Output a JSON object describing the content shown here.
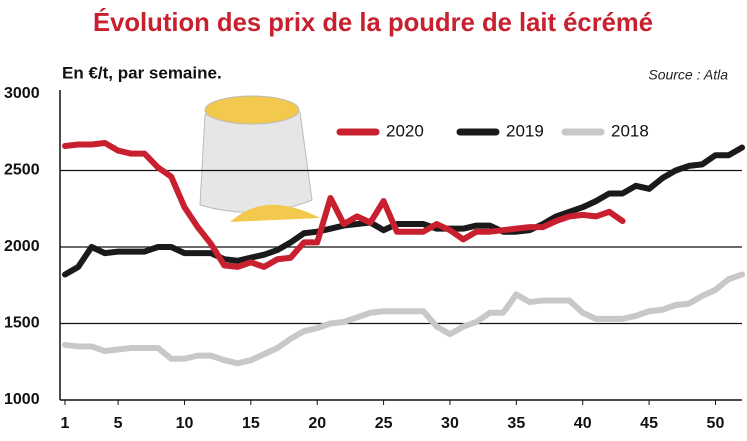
{
  "chart_data": {
    "type": "line",
    "title": "Évolution des prix de la poudre de lait écrémé",
    "subtitle": "En €/t, par semaine.",
    "source": "Source : Atla",
    "x": [
      1,
      2,
      3,
      4,
      5,
      6,
      7,
      8,
      9,
      10,
      11,
      12,
      13,
      14,
      15,
      16,
      17,
      18,
      19,
      20,
      21,
      22,
      23,
      24,
      25,
      26,
      27,
      28,
      29,
      30,
      31,
      32,
      33,
      34,
      35,
      36,
      37,
      38,
      39,
      40,
      41,
      42,
      43,
      44,
      45,
      46,
      47,
      48,
      49,
      50,
      51,
      52
    ],
    "xlim": [
      1,
      52
    ],
    "xticks": [
      1,
      5,
      10,
      15,
      20,
      25,
      30,
      35,
      40,
      45,
      50
    ],
    "ylim": [
      1000,
      3000
    ],
    "yticks": [
      1000,
      1500,
      2000,
      2500,
      3000
    ],
    "grid": true,
    "series": [
      {
        "name": "2020",
        "color": "#c8202f",
        "values": [
          2660,
          2670,
          2670,
          2680,
          2630,
          2610,
          2610,
          2520,
          2460,
          2260,
          2130,
          2020,
          1880,
          1870,
          1900,
          1870,
          1920,
          1930,
          2030,
          2030,
          2320,
          2150,
          2200,
          2160,
          2300,
          2100,
          2100,
          2100,
          2150,
          2110,
          2050,
          2100,
          2100,
          2110,
          2120,
          2130,
          2130,
          2170,
          2200,
          2210,
          2200,
          2230,
          2170,
          null,
          null,
          null,
          null,
          null,
          null,
          null,
          null,
          null
        ]
      },
      {
        "name": "2019",
        "color": "#1a1a1a",
        "values": [
          1820,
          1870,
          2000,
          1960,
          1970,
          1970,
          1970,
          2000,
          2000,
          1960,
          1960,
          1960,
          1920,
          1910,
          1930,
          1950,
          1980,
          2030,
          2090,
          2100,
          2120,
          2140,
          2150,
          2160,
          2110,
          2150,
          2150,
          2150,
          2120,
          2120,
          2120,
          2140,
          2140,
          2100,
          2100,
          2110,
          2150,
          2200,
          2230,
          2260,
          2300,
          2350,
          2350,
          2400,
          2380,
          2450,
          2500,
          2530,
          2540,
          2600,
          2600,
          2650
        ]
      },
      {
        "name": "2018",
        "color": "#c8c8c8",
        "values": [
          1360,
          1350,
          1350,
          1320,
          1330,
          1340,
          1340,
          1340,
          1270,
          1270,
          1290,
          1290,
          1260,
          1240,
          1260,
          1300,
          1340,
          1400,
          1450,
          1470,
          1500,
          1510,
          1540,
          1570,
          1580,
          1580,
          1580,
          1580,
          1480,
          1430,
          1480,
          1510,
          1570,
          1570,
          1690,
          1640,
          1650,
          1650,
          1650,
          1570,
          1530,
          1530,
          1530,
          1550,
          1580,
          1590,
          1620,
          1630,
          1680,
          1720,
          1790,
          1820
        ]
      }
    ]
  }
}
